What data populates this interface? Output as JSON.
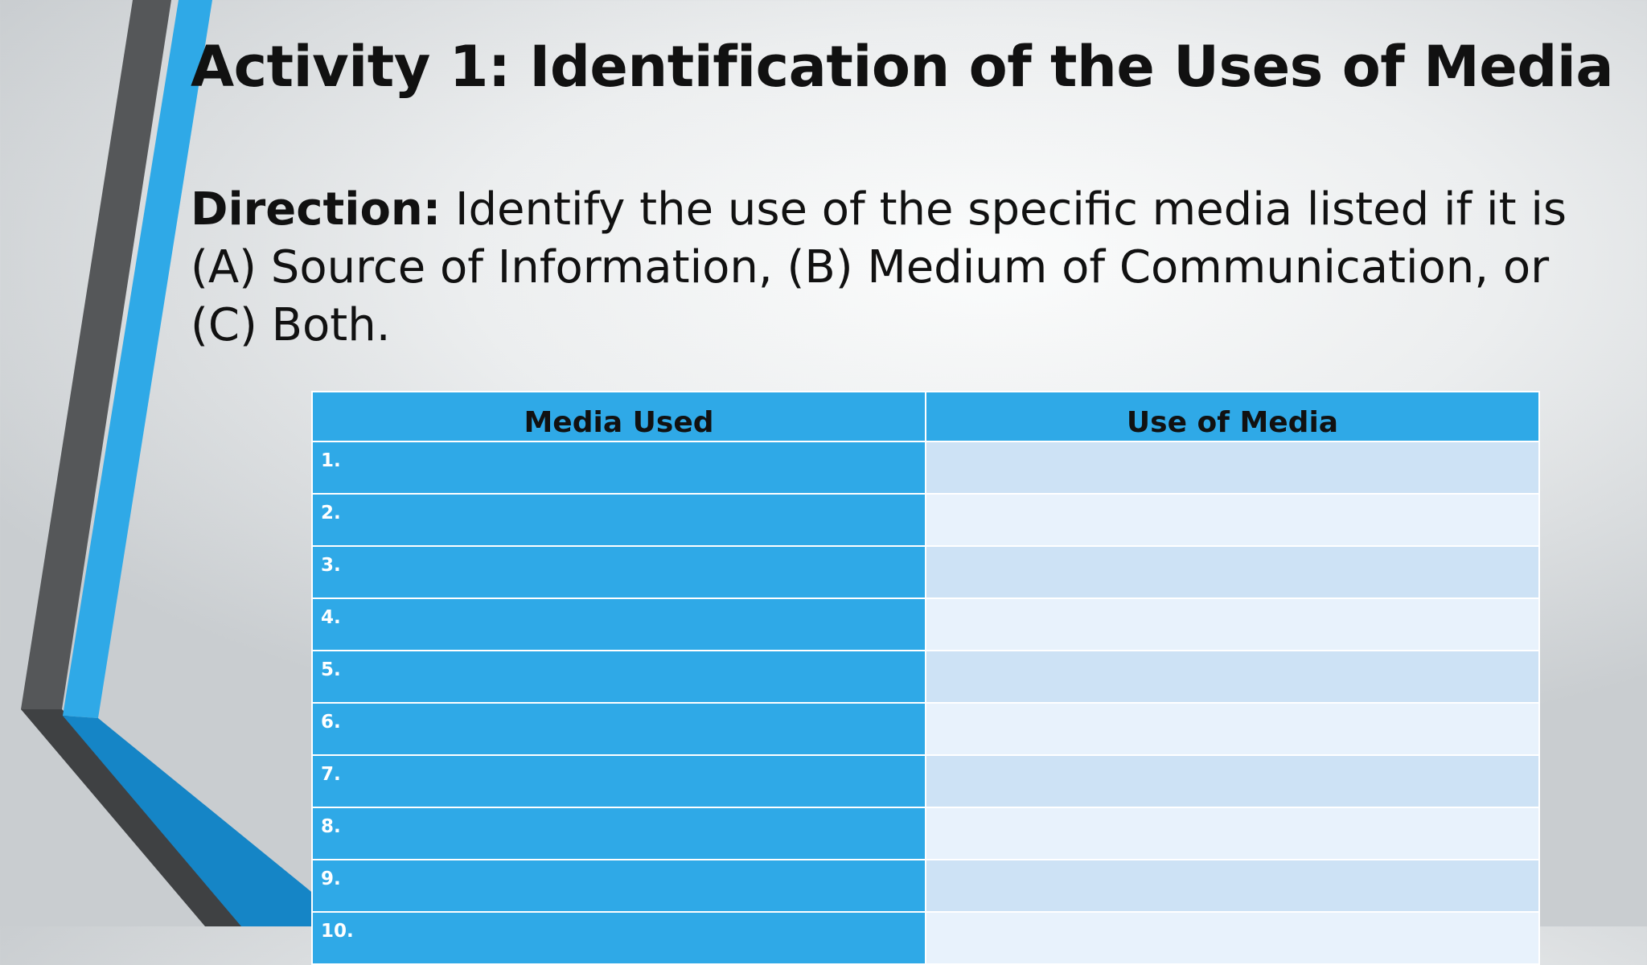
{
  "slide": {
    "title": "Activity 1: Identification of the Uses of Media",
    "direction_label": "Direction:",
    "direction_text": " Identify the use of the specific media listed if it is (A) Source of Information, (B) Medium of Communication, or (C) Both."
  },
  "table": {
    "headers": [
      "Media Used",
      "Use of Media"
    ],
    "rows": [
      {
        "media": "1.",
        "use": ""
      },
      {
        "media": "2.",
        "use": ""
      },
      {
        "media": "3.",
        "use": ""
      },
      {
        "media": "4.",
        "use": ""
      },
      {
        "media": "5.",
        "use": ""
      },
      {
        "media": "6.",
        "use": ""
      },
      {
        "media": "7.",
        "use": ""
      },
      {
        "media": "8.",
        "use": ""
      },
      {
        "media": "9.",
        "use": ""
      },
      {
        "media": "10.",
        "use": ""
      }
    ]
  },
  "colors": {
    "accent_blue": "#2fa9e7",
    "deep_blue": "#1585c6",
    "dark_gray": "#3f4143",
    "row_light_1": "#cde2f5",
    "row_light_2": "#e8f2fc"
  }
}
